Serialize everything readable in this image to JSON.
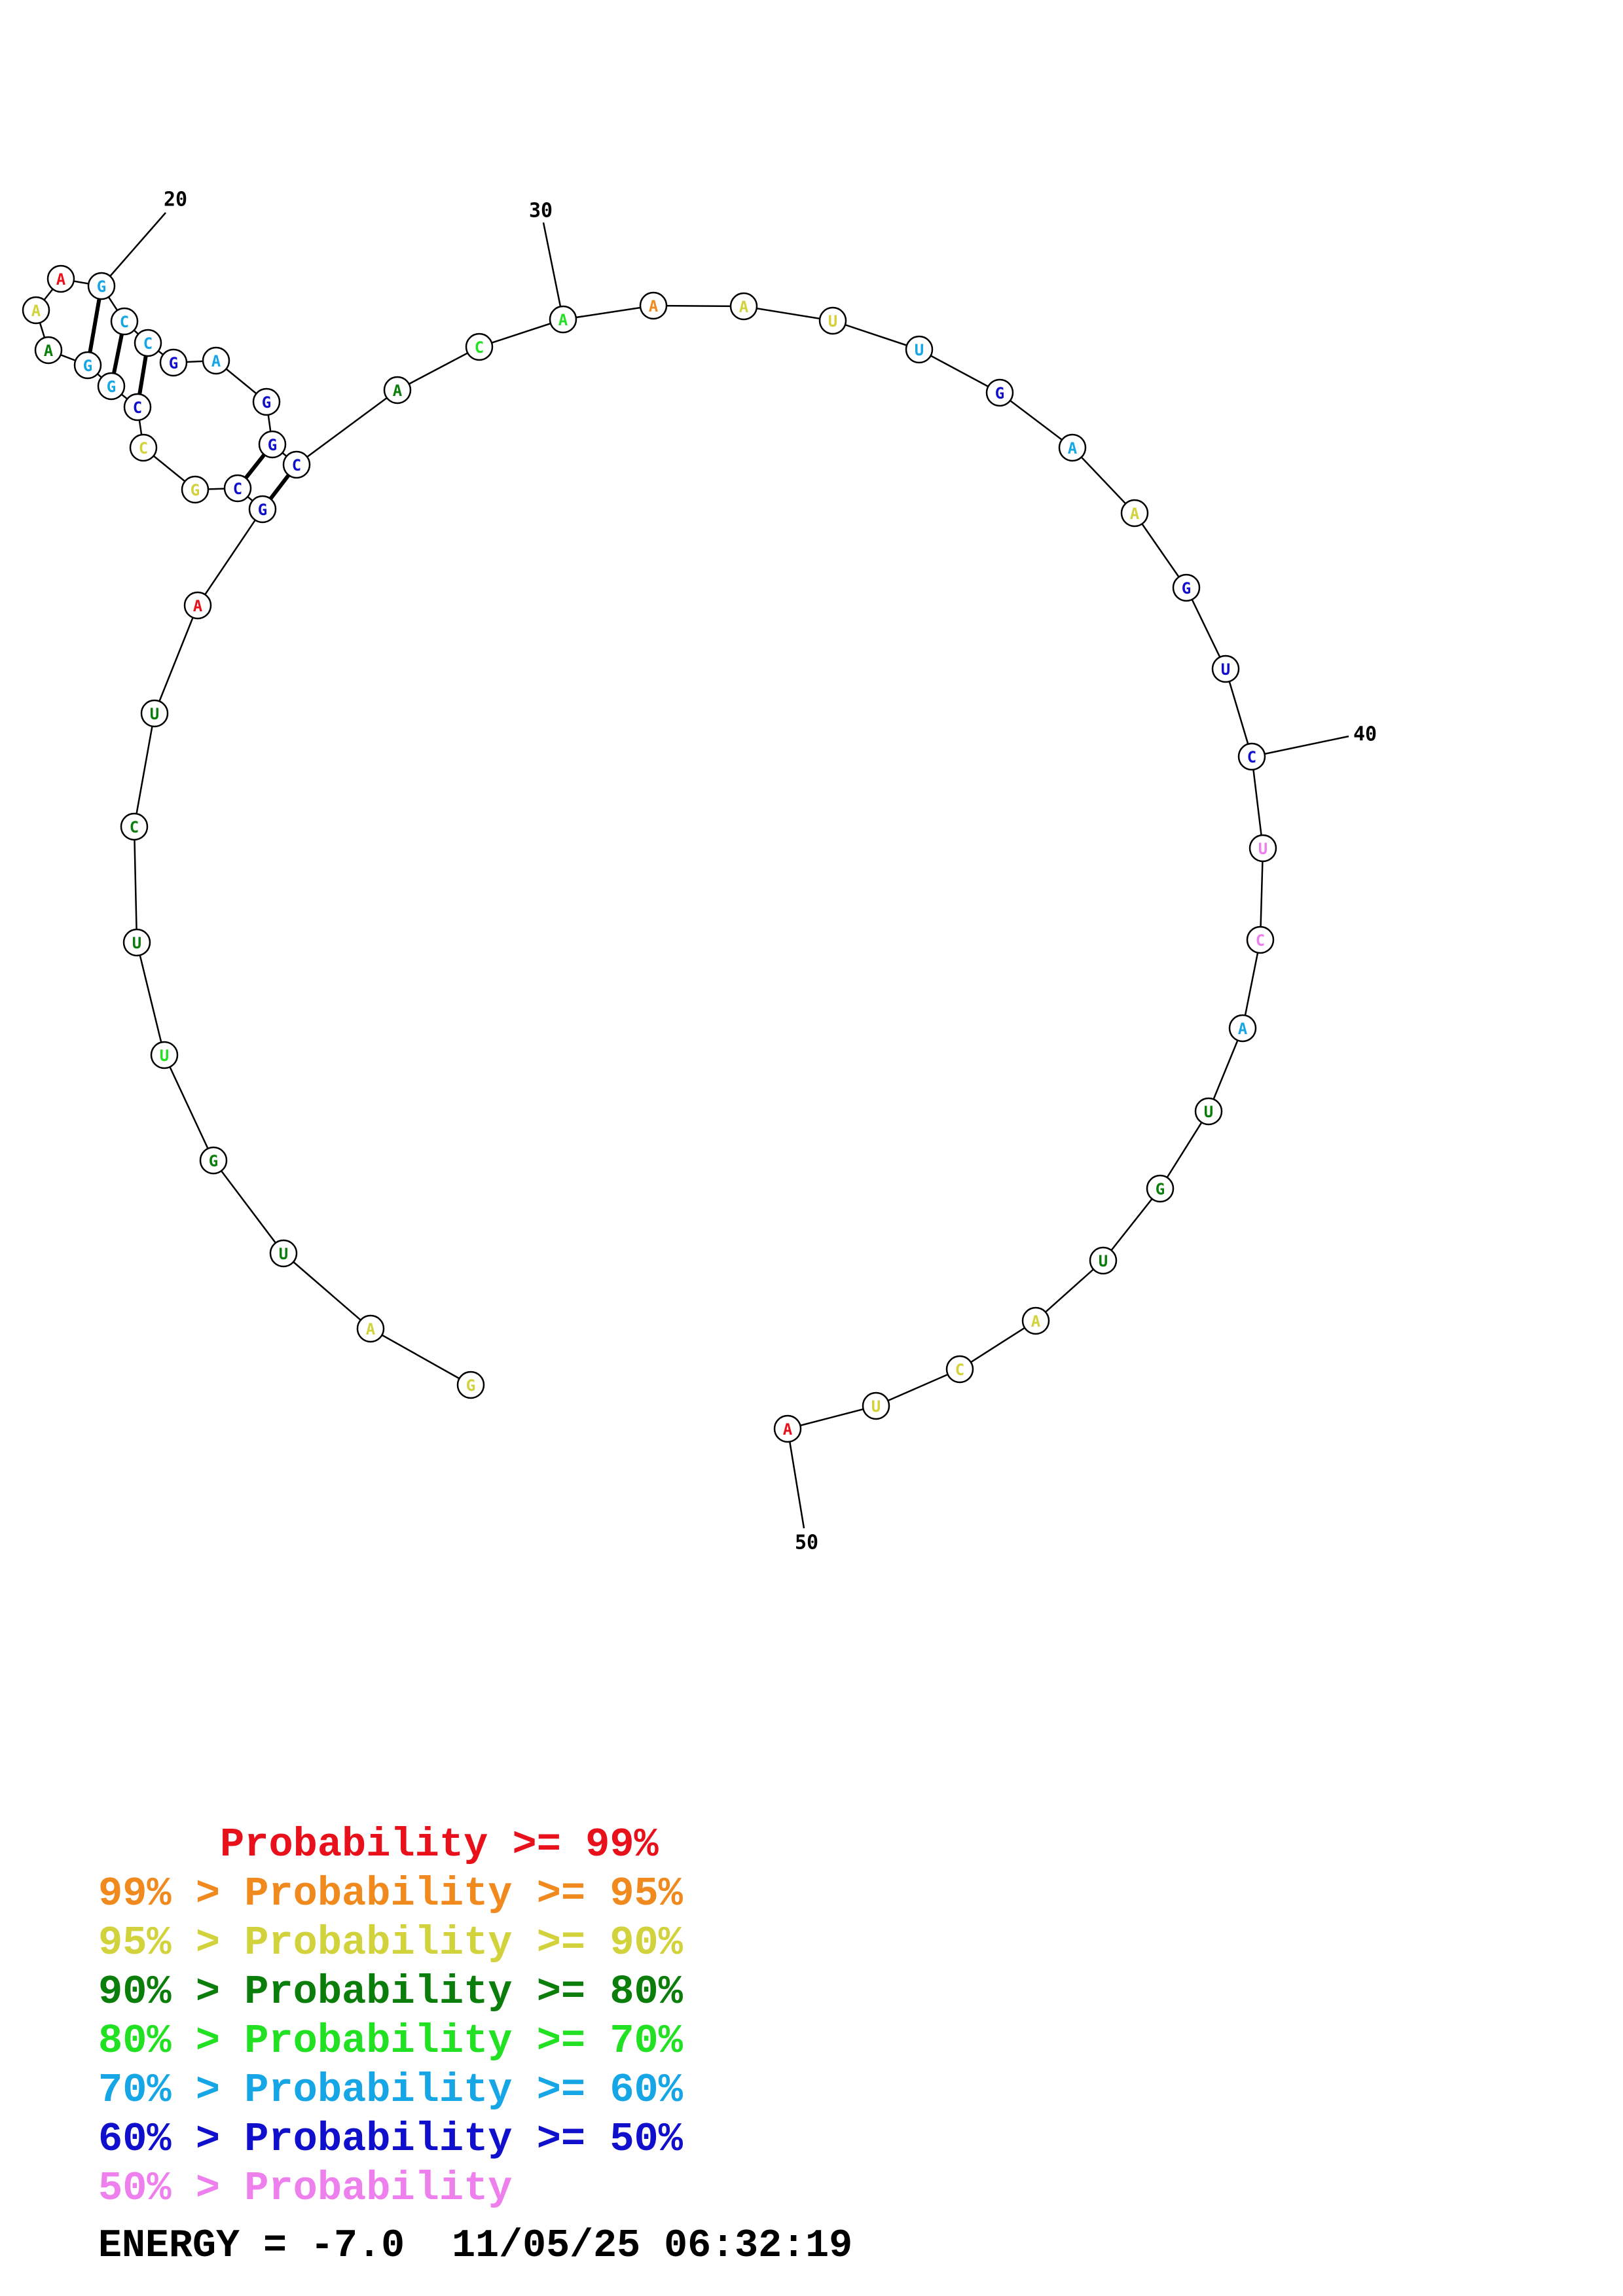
{
  "colors": {
    "red": "#e8101a",
    "orange": "#f08a1e",
    "yellow": "#d2d23c",
    "darkgreen": "#0b7d0b",
    "green": "#22e022",
    "cyan": "#16a6e6",
    "blue": "#1010cc",
    "pink": "#ee80ee"
  },
  "structure": {
    "bases": [
      {
        "letter": "G",
        "color": "yellow"
      },
      {
        "letter": "A",
        "color": "yellow"
      },
      {
        "letter": "U",
        "color": "darkgreen"
      },
      {
        "letter": "G",
        "color": "darkgreen"
      },
      {
        "letter": "U",
        "color": "green"
      },
      {
        "letter": "U",
        "color": "darkgreen"
      },
      {
        "letter": "C",
        "color": "darkgreen"
      },
      {
        "letter": "U",
        "color": "darkgreen"
      },
      {
        "letter": "A",
        "color": "red"
      },
      {
        "letter": "G",
        "color": "blue"
      },
      {
        "letter": "C",
        "color": "blue"
      },
      {
        "letter": "G",
        "color": "yellow"
      },
      {
        "letter": "C",
        "color": "yellow"
      },
      {
        "letter": "C",
        "color": "blue"
      },
      {
        "letter": "G",
        "color": "cyan"
      },
      {
        "letter": "G",
        "color": "cyan"
      },
      {
        "letter": "A",
        "color": "darkgreen"
      },
      {
        "letter": "A",
        "color": "yellow"
      },
      {
        "letter": "A",
        "color": "red"
      },
      {
        "letter": "G",
        "color": "cyan"
      },
      {
        "letter": "C",
        "color": "cyan"
      },
      {
        "letter": "C",
        "color": "cyan"
      },
      {
        "letter": "G",
        "color": "blue"
      },
      {
        "letter": "A",
        "color": "cyan"
      },
      {
        "letter": "G",
        "color": "blue"
      },
      {
        "letter": "G",
        "color": "blue"
      },
      {
        "letter": "C",
        "color": "blue"
      },
      {
        "letter": "A",
        "color": "darkgreen"
      },
      {
        "letter": "C",
        "color": "green"
      },
      {
        "letter": "A",
        "color": "green"
      },
      {
        "letter": "A",
        "color": "orange"
      },
      {
        "letter": "A",
        "color": "yellow"
      },
      {
        "letter": "U",
        "color": "yellow"
      },
      {
        "letter": "U",
        "color": "cyan"
      },
      {
        "letter": "G",
        "color": "blue"
      },
      {
        "letter": "A",
        "color": "cyan"
      },
      {
        "letter": "A",
        "color": "yellow"
      },
      {
        "letter": "G",
        "color": "blue"
      },
      {
        "letter": "U",
        "color": "blue"
      },
      {
        "letter": "C",
        "color": "blue"
      },
      {
        "letter": "U",
        "color": "pink"
      },
      {
        "letter": "C",
        "color": "pink"
      },
      {
        "letter": "A",
        "color": "cyan"
      },
      {
        "letter": "U",
        "color": "darkgreen"
      },
      {
        "letter": "G",
        "color": "darkgreen"
      },
      {
        "letter": "U",
        "color": "darkgreen"
      },
      {
        "letter": "A",
        "color": "yellow"
      },
      {
        "letter": "C",
        "color": "yellow"
      },
      {
        "letter": "U",
        "color": "yellow"
      },
      {
        "letter": "A",
        "color": "red"
      }
    ],
    "pairs": [
      [
        10,
        27
      ],
      [
        11,
        26
      ],
      [
        14,
        22
      ],
      [
        15,
        21
      ],
      [
        16,
        20
      ]
    ],
    "numbering": [
      {
        "index": 20,
        "label": "20"
      },
      {
        "index": 30,
        "label": "30"
      },
      {
        "index": 40,
        "label": "40"
      },
      {
        "index": 50,
        "label": "50"
      }
    ]
  },
  "legend": [
    {
      "text": "     Probability >= 99%",
      "color": "red"
    },
    {
      "text": "99% > Probability >= 95%",
      "color": "orange"
    },
    {
      "text": "95% > Probability >= 90%",
      "color": "yellow"
    },
    {
      "text": "90% > Probability >= 80%",
      "color": "darkgreen"
    },
    {
      "text": "80% > Probability >= 70%",
      "color": "green"
    },
    {
      "text": "70% > Probability >= 60%",
      "color": "cyan"
    },
    {
      "text": "60% > Probability >= 50%",
      "color": "blue"
    },
    {
      "text": "50% > Probability",
      "color": "pink"
    }
  ],
  "energy": {
    "label": "ENERGY = -7.0  11/05/25 06:32:19"
  }
}
